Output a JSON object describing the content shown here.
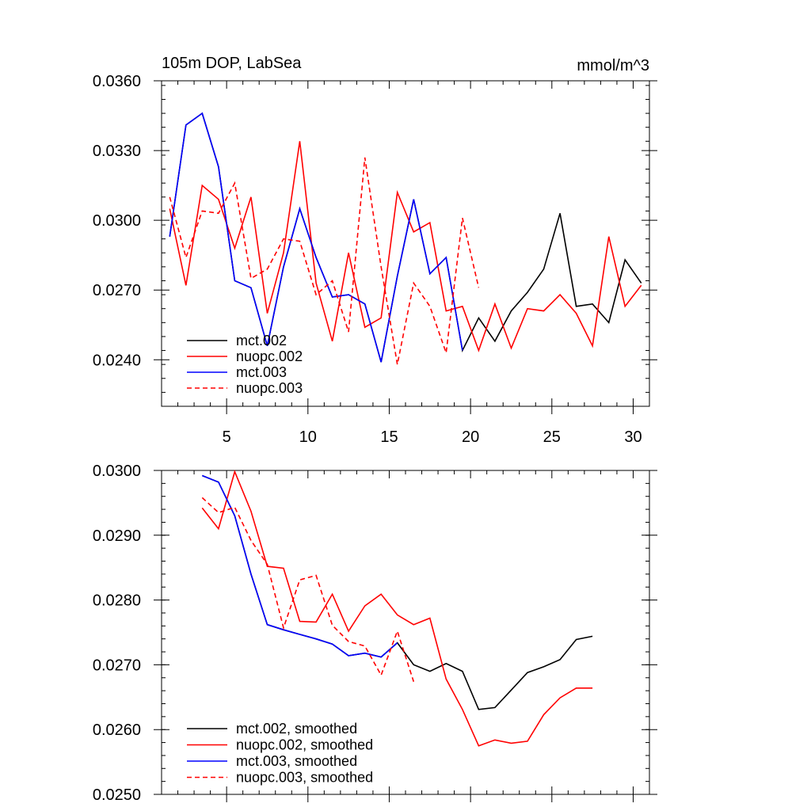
{
  "chart_data": [
    {
      "type": "line",
      "title": "105m DOP, LabSea",
      "units": "mmol/m^3",
      "xlim": [
        1,
        31
      ],
      "ylim": [
        0.022,
        0.036
      ],
      "xticks": [
        "5",
        "10",
        "15",
        "20",
        "25",
        "30"
      ],
      "yticks": [
        "0.0240",
        "0.0270",
        "0.0300",
        "0.0330",
        "0.0360"
      ],
      "legend_position": "bottom-left",
      "series": [
        {
          "name": "mct.002",
          "color": "#000000",
          "dash": "solid",
          "x": [
            1.5,
            2.5,
            3.5,
            4.5,
            5.5,
            6.5,
            7.5,
            8.5,
            9.5,
            10.5,
            11.5,
            12.5,
            13.5,
            14.5,
            15.5,
            16.5,
            17.5,
            18.5,
            19.5,
            20.5,
            21.5,
            22.5,
            23.5,
            24.5,
            25.5,
            26.5,
            27.5,
            28.5,
            29.5,
            30.5
          ],
          "values": [
            0.0293,
            0.0341,
            0.0346,
            0.0323,
            0.0274,
            0.0271,
            0.0246,
            0.028,
            0.0305,
            0.0284,
            0.0267,
            0.0268,
            0.0264,
            0.0239,
            0.0276,
            0.0309,
            0.0277,
            0.0284,
            0.0244,
            0.0258,
            0.0248,
            0.0261,
            0.0269,
            0.0279,
            0.0303,
            0.0263,
            0.0264,
            0.0256,
            0.0283,
            0.0273
          ]
        },
        {
          "name": "nuopc.002",
          "color": "#ff0000",
          "dash": "solid",
          "x": [
            1.5,
            2.5,
            3.5,
            4.5,
            5.5,
            6.5,
            7.5,
            8.5,
            9.5,
            10.5,
            11.5,
            12.5,
            13.5,
            14.5,
            15.5,
            16.5,
            17.5,
            18.5,
            19.5,
            20.5,
            21.5,
            22.5,
            23.5,
            24.5,
            25.5,
            26.5,
            27.5,
            28.5,
            29.5,
            30.5
          ],
          "values": [
            0.0305,
            0.0272,
            0.0315,
            0.0309,
            0.0288,
            0.031,
            0.026,
            0.0286,
            0.0334,
            0.0273,
            0.0248,
            0.0286,
            0.0254,
            0.0258,
            0.0312,
            0.0295,
            0.0299,
            0.0261,
            0.0263,
            0.0244,
            0.0264,
            0.0245,
            0.0262,
            0.0261,
            0.0268,
            0.026,
            0.0246,
            0.0293,
            0.0263,
            0.0272
          ]
        },
        {
          "name": "mct.003",
          "color": "#0000ff",
          "dash": "solid",
          "x": [
            1.5,
            2.5,
            3.5,
            4.5,
            5.5,
            6.5,
            7.5,
            8.5,
            9.5,
            10.5,
            11.5,
            12.5,
            13.5,
            14.5,
            15.5,
            16.5,
            17.5,
            18.5,
            19.5
          ],
          "values": [
            0.0293,
            0.0341,
            0.0346,
            0.0323,
            0.0274,
            0.0271,
            0.0246,
            0.028,
            0.0305,
            0.0284,
            0.0267,
            0.0268,
            0.0264,
            0.0239,
            0.0276,
            0.0309,
            0.0277,
            0.0284,
            0.0244
          ]
        },
        {
          "name": "nuopc.003",
          "color": "#ff0000",
          "dash": "dashed",
          "x": [
            1.5,
            2.5,
            3.5,
            4.5,
            5.5,
            6.5,
            7.5,
            8.5,
            9.5,
            10.5,
            11.5,
            12.5,
            13.5,
            14.5,
            15.5,
            16.5,
            17.5,
            18.5,
            19.5,
            20.5
          ],
          "values": [
            0.031,
            0.0284,
            0.0304,
            0.0303,
            0.0316,
            0.0275,
            0.0279,
            0.0292,
            0.0291,
            0.0268,
            0.0274,
            0.0252,
            0.0327,
            0.028,
            0.0238,
            0.0273,
            0.0263,
            0.0243,
            0.0301,
            0.0271
          ]
        }
      ]
    },
    {
      "type": "line",
      "xlim": [
        1,
        31
      ],
      "ylim": [
        0.025,
        0.03
      ],
      "yticks": [
        "0.0250",
        "0.0260",
        "0.0270",
        "0.0280",
        "0.0290",
        "0.0300"
      ],
      "legend_position": "bottom-left",
      "series": [
        {
          "name": "mct.002, smoothed",
          "color": "#000000",
          "dash": "solid",
          "x": [
            3.5,
            4.5,
            5.5,
            6.5,
            7.5,
            8.5,
            9.5,
            10.5,
            11.5,
            12.5,
            13.5,
            14.5,
            15.5,
            16.5,
            17.5,
            18.5,
            19.5,
            20.5,
            21.5,
            22.5,
            23.5,
            24.5,
            25.5,
            26.5,
            27.5
          ],
          "values": [
            0.02992,
            0.02982,
            0.0293,
            0.0284,
            0.02762,
            0.02754,
            0.02747,
            0.0274,
            0.02732,
            0.02714,
            0.02718,
            0.02712,
            0.02734,
            0.027,
            0.0269,
            0.02702,
            0.0269,
            0.02631,
            0.02634,
            0.02661,
            0.02688,
            0.02697,
            0.02708,
            0.02739,
            0.02744
          ]
        },
        {
          "name": "nuopc.002, smoothed",
          "color": "#ff0000",
          "dash": "solid",
          "x": [
            3.5,
            4.5,
            5.5,
            6.5,
            7.5,
            8.5,
            9.5,
            10.5,
            11.5,
            12.5,
            13.5,
            14.5,
            15.5,
            16.5,
            17.5,
            18.5,
            19.5,
            20.5,
            21.5,
            22.5,
            23.5,
            24.5,
            25.5,
            26.5,
            27.5
          ],
          "values": [
            0.02942,
            0.0291,
            0.02998,
            0.02937,
            0.02852,
            0.02849,
            0.02767,
            0.02766,
            0.02809,
            0.02752,
            0.02791,
            0.02809,
            0.02777,
            0.02762,
            0.02772,
            0.02678,
            0.02631,
            0.02575,
            0.02584,
            0.02579,
            0.02582,
            0.02623,
            0.02649,
            0.02664,
            0.02664
          ]
        },
        {
          "name": "mct.003, smoothed",
          "color": "#0000ff",
          "dash": "solid",
          "x": [
            3.5,
            4.5,
            5.5,
            6.5,
            7.5,
            8.5,
            9.5,
            10.5,
            11.5,
            12.5,
            13.5,
            14.5,
            15.5
          ],
          "values": [
            0.02992,
            0.02982,
            0.0293,
            0.0284,
            0.02762,
            0.02754,
            0.02747,
            0.0274,
            0.02732,
            0.02714,
            0.02718,
            0.02712,
            0.02734
          ]
        },
        {
          "name": "nuopc.003, smoothed",
          "color": "#ff0000",
          "dash": "dashed",
          "x": [
            3.5,
            4.5,
            5.5,
            6.5,
            7.5,
            8.5,
            9.5,
            10.5,
            11.5,
            12.5,
            13.5,
            14.5,
            15.5,
            16.5
          ],
          "values": [
            0.02958,
            0.02935,
            0.02943,
            0.02892,
            0.02855,
            0.02757,
            0.02831,
            0.02838,
            0.02761,
            0.02736,
            0.02729,
            0.02684,
            0.02752,
            0.02674
          ]
        }
      ]
    }
  ]
}
